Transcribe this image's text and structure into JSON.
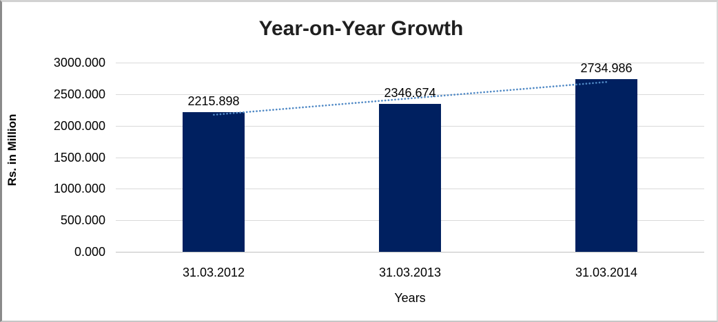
{
  "chart_data": {
    "type": "bar",
    "title": "Year-on-Year Growth",
    "xlabel": "Years",
    "ylabel": "Rs. in Million",
    "categories": [
      "31.03.2012",
      "31.03.2013",
      "31.03.2014"
    ],
    "series": [
      {
        "name": "Rs. in Million",
        "values": [
          2215.898,
          2346.674,
          2734.986
        ]
      }
    ],
    "data_labels": [
      "2215.898",
      "2346.674",
      "2734.986"
    ],
    "ylim": [
      0,
      3000
    ],
    "ytick_step": 500,
    "ytick_labels": [
      "0.000",
      "500.000",
      "1000.000",
      "1500.000",
      "2000.000",
      "2500.000",
      "3000.000"
    ],
    "grid": true,
    "legend_position": "none",
    "bar_color": "#002060",
    "gridline_color": "#d9d9d9",
    "trendline": {
      "fit": "linear",
      "style": "dotted",
      "color": "#5089c5"
    }
  }
}
